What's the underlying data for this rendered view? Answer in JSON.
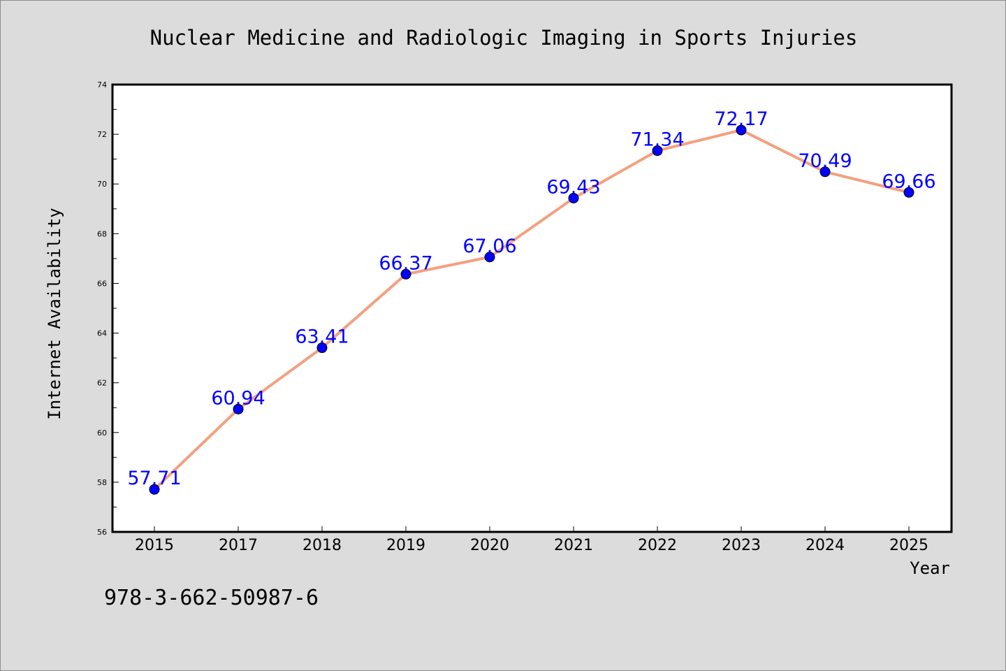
{
  "chart_data": {
    "type": "line",
    "title": "Nuclear Medicine and Radiologic Imaging in Sports Injuries",
    "xlabel": "Year",
    "ylabel": "Internet Availability",
    "categories": [
      "2015",
      "2017",
      "2018",
      "2019",
      "2020",
      "2021",
      "2022",
      "2023",
      "2024",
      "2025"
    ],
    "series": [
      {
        "values": [
          57.71,
          60.94,
          63.41,
          66.37,
          67.06,
          69.43,
          71.34,
          72.17,
          70.49,
          69.66
        ],
        "data_labels": [
          "57.71",
          "60.94",
          "63.41",
          "66.37",
          "67.06",
          "69.43",
          "71.34",
          "72.17",
          "70.49",
          "69.66"
        ]
      }
    ],
    "ylim": [
      56,
      74
    ],
    "yticks": [
      "56",
      "58",
      "60",
      "62",
      "64",
      "66",
      "68",
      "70",
      "72",
      "74"
    ],
    "grid": false,
    "colors": {
      "line": "#f4a07f",
      "marker": "#0000ff",
      "data_label": "#0000ff",
      "background": "#dcdcdc",
      "plot_background": "#ffffff"
    }
  },
  "footnote": "978-3-662-50987-6"
}
